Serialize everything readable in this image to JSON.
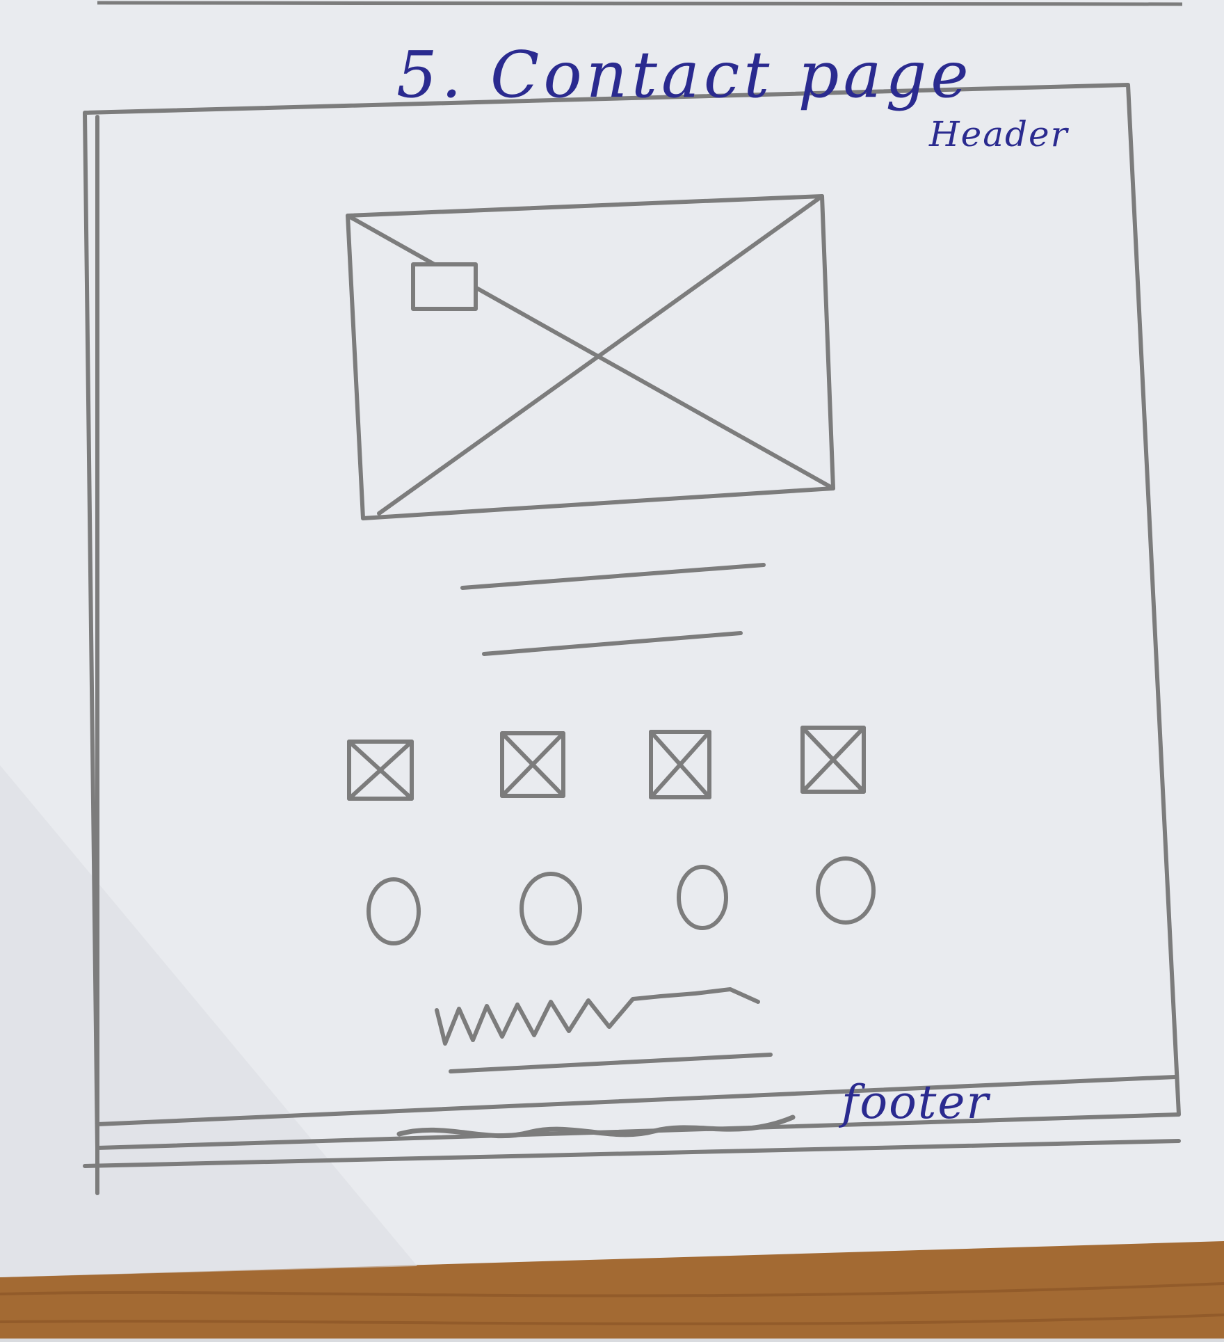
{
  "sketch": {
    "title": "5. Contact page",
    "header_label": "Header",
    "footer_label": "footer"
  },
  "colors": {
    "pencil": "#7c7c7c",
    "ink": "#2a2a8f",
    "paper": "#eceef2",
    "desk": "#a36a33"
  },
  "wireframe": {
    "hero_image": "image-placeholder",
    "text_lines": 2,
    "icon_boxes": 4,
    "icon_circles": 4,
    "footer_scribble": "wavy-line"
  }
}
